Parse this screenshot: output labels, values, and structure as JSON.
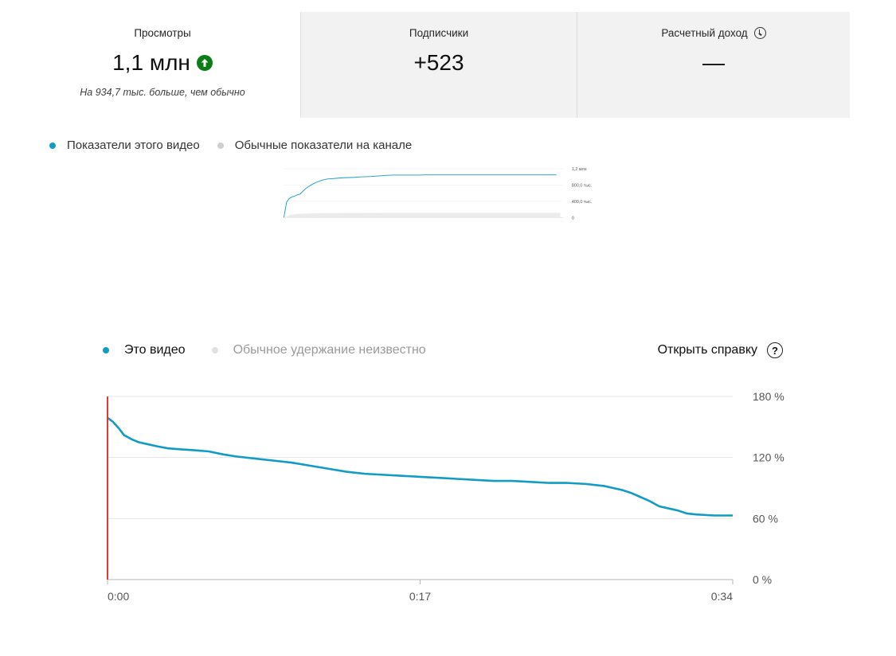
{
  "cards": [
    {
      "label": "Просмотры",
      "value": "1,1 млн",
      "note": "На 934,7 тыс. больше, чем обычно",
      "trend_icon": "arrow-up-circle-icon"
    },
    {
      "label": "Подписчики",
      "value": "+523"
    },
    {
      "label": "Расчетный доход",
      "value": "—",
      "info_icon": "clock-icon"
    }
  ],
  "views_legend": {
    "this_video": "Показатели этого видео",
    "typical": "Обычные показатели на канале"
  },
  "retention_legend": {
    "this_video": "Это видео",
    "typical": "Обычное удержание неизвестно"
  },
  "help": {
    "label": "Открыть справку",
    "icon": "help-circle-icon"
  },
  "colors": {
    "series": "#129bc6",
    "typical": "#d4d4d4",
    "marker": "#e53935",
    "up": "#0a7d16"
  },
  "chart_data": [
    {
      "type": "area",
      "y_tick_labels": [
        "1,2 млн",
        "800,0 тыс.",
        "400,0 тыс.",
        "0"
      ],
      "ylim": [
        0,
        1200000
      ],
      "y_ticks": [
        0,
        400000,
        800000,
        1200000
      ],
      "series": [
        {
          "name": "Показатели этого видео",
          "type": "line",
          "x": [
            0,
            1,
            2,
            3,
            4,
            5,
            6,
            7,
            8,
            9,
            10,
            11,
            12,
            14,
            16,
            18,
            20,
            22,
            24,
            26,
            28,
            30,
            32,
            34,
            36,
            38,
            40,
            42,
            44,
            46,
            48,
            50,
            52,
            54,
            56,
            58,
            60,
            65,
            70,
            75,
            80,
            90,
            100
          ],
          "values": [
            0,
            380000,
            470000,
            510000,
            530000,
            560000,
            580000,
            650000,
            710000,
            760000,
            800000,
            840000,
            870000,
            920000,
            950000,
            960000,
            970000,
            980000,
            985000,
            990000,
            1000000,
            1005000,
            1010000,
            1020000,
            1030000,
            1040000,
            1045000,
            1045000,
            1045000,
            1045000,
            1045000,
            1045000,
            1050000,
            1050000,
            1050000,
            1050000,
            1050000,
            1050000,
            1050000,
            1050000,
            1050000,
            1050000,
            1050000
          ]
        },
        {
          "name": "Обычные показатели на канале",
          "type": "area",
          "x": [
            0,
            2,
            4,
            6,
            8,
            10,
            15,
            20,
            30,
            40,
            60,
            80,
            100
          ],
          "values": [
            0,
            60000,
            85000,
            95000,
            100000,
            105000,
            110000,
            113000,
            115000,
            116000,
            117000,
            117000,
            117000
          ]
        }
      ]
    },
    {
      "type": "line",
      "x_tick_labels": [
        "0:00",
        "0:17",
        "0:34"
      ],
      "y_tick_labels": [
        "180 %",
        "120 %",
        "60 %",
        "0 %"
      ],
      "ylim": [
        0,
        180
      ],
      "y_ticks": [
        0,
        60,
        120,
        180
      ],
      "xlim": [
        0,
        34
      ],
      "series": [
        {
          "name": "Это видео",
          "x": [
            0,
            0.3,
            0.6,
            0.9,
            1.3,
            1.7,
            2.2,
            2.7,
            3.3,
            4,
            4.8,
            5.5,
            6.3,
            7,
            8,
            9,
            10,
            11,
            12,
            13,
            14,
            15,
            16,
            17,
            18,
            19,
            20,
            21,
            22,
            23,
            24,
            25,
            26,
            27,
            27.5,
            28,
            28.5,
            29,
            29.5,
            30,
            30.5,
            31,
            31.5,
            32,
            33,
            34
          ],
          "values": [
            159,
            155,
            149,
            142,
            138,
            135,
            133,
            131,
            129,
            128,
            127,
            126,
            123,
            121,
            119,
            117,
            115,
            112,
            109,
            106,
            104,
            103,
            102,
            101,
            100,
            99,
            98,
            97,
            97,
            96,
            95,
            95,
            94,
            92,
            90,
            88,
            85,
            81,
            77,
            72,
            70,
            68,
            65,
            64,
            63,
            63
          ]
        }
      ],
      "marker_x": 0
    }
  ]
}
